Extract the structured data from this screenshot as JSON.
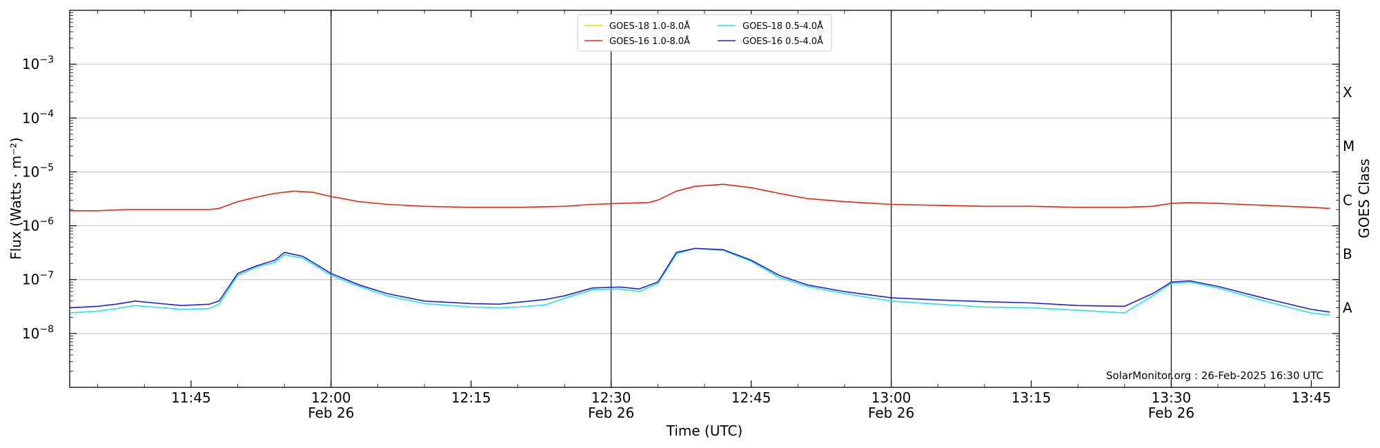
{
  "chart_data": {
    "type": "line",
    "title": "",
    "xlabel": "Time (UTC)",
    "ylabel": "Flux (Watts · m⁻²)",
    "ylabel_right": "GOES Class",
    "yscale": "log",
    "ylim": [
      1e-09,
      0.01
    ],
    "xlim": [
      "2025-02-26T11:32",
      "2025-02-26T13:48"
    ],
    "grid": "horizontal at decades",
    "legend_position": "top-center",
    "y_ticks": [
      {
        "value": 1e-08,
        "base": "10",
        "exp": "−8"
      },
      {
        "value": 1e-07,
        "base": "10",
        "exp": "−7"
      },
      {
        "value": 1e-06,
        "base": "10",
        "exp": "−6"
      },
      {
        "value": 1e-05,
        "base": "10",
        "exp": "−5"
      },
      {
        "value": 0.0001,
        "base": "10",
        "exp": "−4"
      },
      {
        "value": 0.001,
        "base": "10",
        "exp": "−3"
      }
    ],
    "x_ticks": [
      {
        "time": "11:45",
        "label": "11:45",
        "date": ""
      },
      {
        "time": "12:00",
        "label": "12:00",
        "date": "Feb 26"
      },
      {
        "time": "12:15",
        "label": "12:15",
        "date": ""
      },
      {
        "time": "12:30",
        "label": "12:30",
        "date": "Feb 26"
      },
      {
        "time": "12:45",
        "label": "12:45",
        "date": ""
      },
      {
        "time": "13:00",
        "label": "13:00",
        "date": "Feb 26"
      },
      {
        "time": "13:15",
        "label": "13:15",
        "date": ""
      },
      {
        "time": "13:30",
        "label": "13:30",
        "date": "Feb 26"
      },
      {
        "time": "13:45",
        "label": "13:45",
        "date": ""
      }
    ],
    "vlines": [
      "12:00",
      "12:30",
      "13:00",
      "13:30"
    ],
    "goes_classes": [
      {
        "label": "A",
        "value": 3e-08
      },
      {
        "label": "B",
        "value": 3e-07
      },
      {
        "label": "C",
        "value": 3e-06
      },
      {
        "label": "M",
        "value": 3e-05
      },
      {
        "label": "X",
        "value": 0.0003
      }
    ],
    "annotation": "SolarMonitor.org : 26-Feb-2025 16:30 UTC",
    "series": [
      {
        "name": "GOES-18 1.0-8.0Å",
        "color": "#ffd700",
        "draw": false,
        "times": [],
        "values": []
      },
      {
        "name": "GOES-16 1.0-8.0Å",
        "color": "#e8240c",
        "draw": true,
        "times": [
          "11:32",
          "11:35",
          "11:38",
          "11:41",
          "11:44",
          "11:47",
          "11:48",
          "11:50",
          "11:52",
          "11:54",
          "11:56",
          "11:58",
          "12:00",
          "12:03",
          "12:06",
          "12:10",
          "12:15",
          "12:20",
          "12:25",
          "12:28",
          "12:31",
          "12:34",
          "12:35",
          "12:37",
          "12:39",
          "12:42",
          "12:45",
          "12:48",
          "12:51",
          "12:55",
          "13:00",
          "13:05",
          "13:10",
          "13:15",
          "13:20",
          "13:25",
          "13:28",
          "13:30",
          "13:32",
          "13:35",
          "13:40",
          "13:45",
          "13:47"
        ],
        "values": [
          1.9e-06,
          1.9e-06,
          2e-06,
          2e-06,
          2e-06,
          2e-06,
          2.1e-06,
          2.8e-06,
          3.4e-06,
          4e-06,
          4.4e-06,
          4.2e-06,
          3.5e-06,
          2.8e-06,
          2.5e-06,
          2.3e-06,
          2.2e-06,
          2.2e-06,
          2.3e-06,
          2.5e-06,
          2.6e-06,
          2.7e-06,
          3e-06,
          4.4e-06,
          5.4e-06,
          5.9e-06,
          5.1e-06,
          4e-06,
          3.2e-06,
          2.8e-06,
          2.5e-06,
          2.4e-06,
          2.3e-06,
          2.3e-06,
          2.2e-06,
          2.2e-06,
          2.3e-06,
          2.6e-06,
          2.7e-06,
          2.6e-06,
          2.4e-06,
          2.2e-06,
          2.1e-06
        ]
      },
      {
        "name": "GOES-18 0.5-4.0Å",
        "color": "#22e0f0",
        "draw": true,
        "times": [
          "11:32",
          "11:35",
          "11:37",
          "11:39",
          "11:41",
          "11:44",
          "11:47",
          "11:48",
          "11:50",
          "11:52",
          "11:54",
          "11:55",
          "11:57",
          "12:00",
          "12:03",
          "12:06",
          "12:10",
          "12:15",
          "12:18",
          "12:20",
          "12:23",
          "12:25",
          "12:28",
          "12:31",
          "12:33",
          "12:35",
          "12:37",
          "12:39",
          "12:42",
          "12:45",
          "12:48",
          "12:51",
          "12:55",
          "13:00",
          "13:05",
          "13:10",
          "13:15",
          "13:20",
          "13:25",
          "13:28",
          "13:30",
          "13:32",
          "13:35",
          "13:40",
          "13:45",
          "13:47"
        ],
        "values": [
          2.4e-08,
          2.6e-08,
          2.9e-08,
          3.3e-08,
          3.1e-08,
          2.8e-08,
          2.9e-08,
          3.5e-08,
          1.2e-07,
          1.7e-07,
          2.1e-07,
          2.9e-07,
          2.5e-07,
          1.2e-07,
          7.5e-08,
          5e-08,
          3.6e-08,
          3.1e-08,
          3e-08,
          3.1e-08,
          3.4e-08,
          4.5e-08,
          6.5e-08,
          6.7e-08,
          6e-08,
          8.5e-08,
          3e-07,
          3.8e-07,
          3.5e-07,
          2.2e-07,
          1.1e-07,
          7.5e-08,
          5.5e-08,
          4e-08,
          3.5e-08,
          3.1e-08,
          3e-08,
          2.7e-08,
          2.4e-08,
          5e-08,
          8.5e-08,
          9e-08,
          7e-08,
          4e-08,
          2.4e-08,
          2.2e-08
        ]
      },
      {
        "name": "GOES-16 0.5-4.0Å",
        "color": "#1a22d6",
        "draw": true,
        "times": [
          "11:32",
          "11:35",
          "11:37",
          "11:39",
          "11:41",
          "11:44",
          "11:47",
          "11:48",
          "11:50",
          "11:52",
          "11:54",
          "11:55",
          "11:57",
          "12:00",
          "12:03",
          "12:06",
          "12:10",
          "12:15",
          "12:18",
          "12:20",
          "12:23",
          "12:25",
          "12:28",
          "12:31",
          "12:33",
          "12:35",
          "12:37",
          "12:39",
          "12:42",
          "12:45",
          "12:48",
          "12:51",
          "12:55",
          "13:00",
          "13:05",
          "13:10",
          "13:15",
          "13:20",
          "13:25",
          "13:28",
          "13:30",
          "13:32",
          "13:35",
          "13:40",
          "13:45",
          "13:47"
        ],
        "values": [
          3e-08,
          3.2e-08,
          3.5e-08,
          4e-08,
          3.7e-08,
          3.3e-08,
          3.5e-08,
          4e-08,
          1.3e-07,
          1.8e-07,
          2.3e-07,
          3.2e-07,
          2.7e-07,
          1.3e-07,
          8e-08,
          5.5e-08,
          4e-08,
          3.6e-08,
          3.5e-08,
          3.8e-08,
          4.3e-08,
          5e-08,
          7e-08,
          7.3e-08,
          6.7e-08,
          9e-08,
          3.2e-07,
          3.8e-07,
          3.6e-07,
          2.3e-07,
          1.2e-07,
          8e-08,
          6e-08,
          4.6e-08,
          4.2e-08,
          3.9e-08,
          3.7e-08,
          3.3e-08,
          3.2e-08,
          5.5e-08,
          9e-08,
          9.5e-08,
          7.5e-08,
          4.5e-08,
          2.8e-08,
          2.5e-08
        ]
      }
    ]
  }
}
